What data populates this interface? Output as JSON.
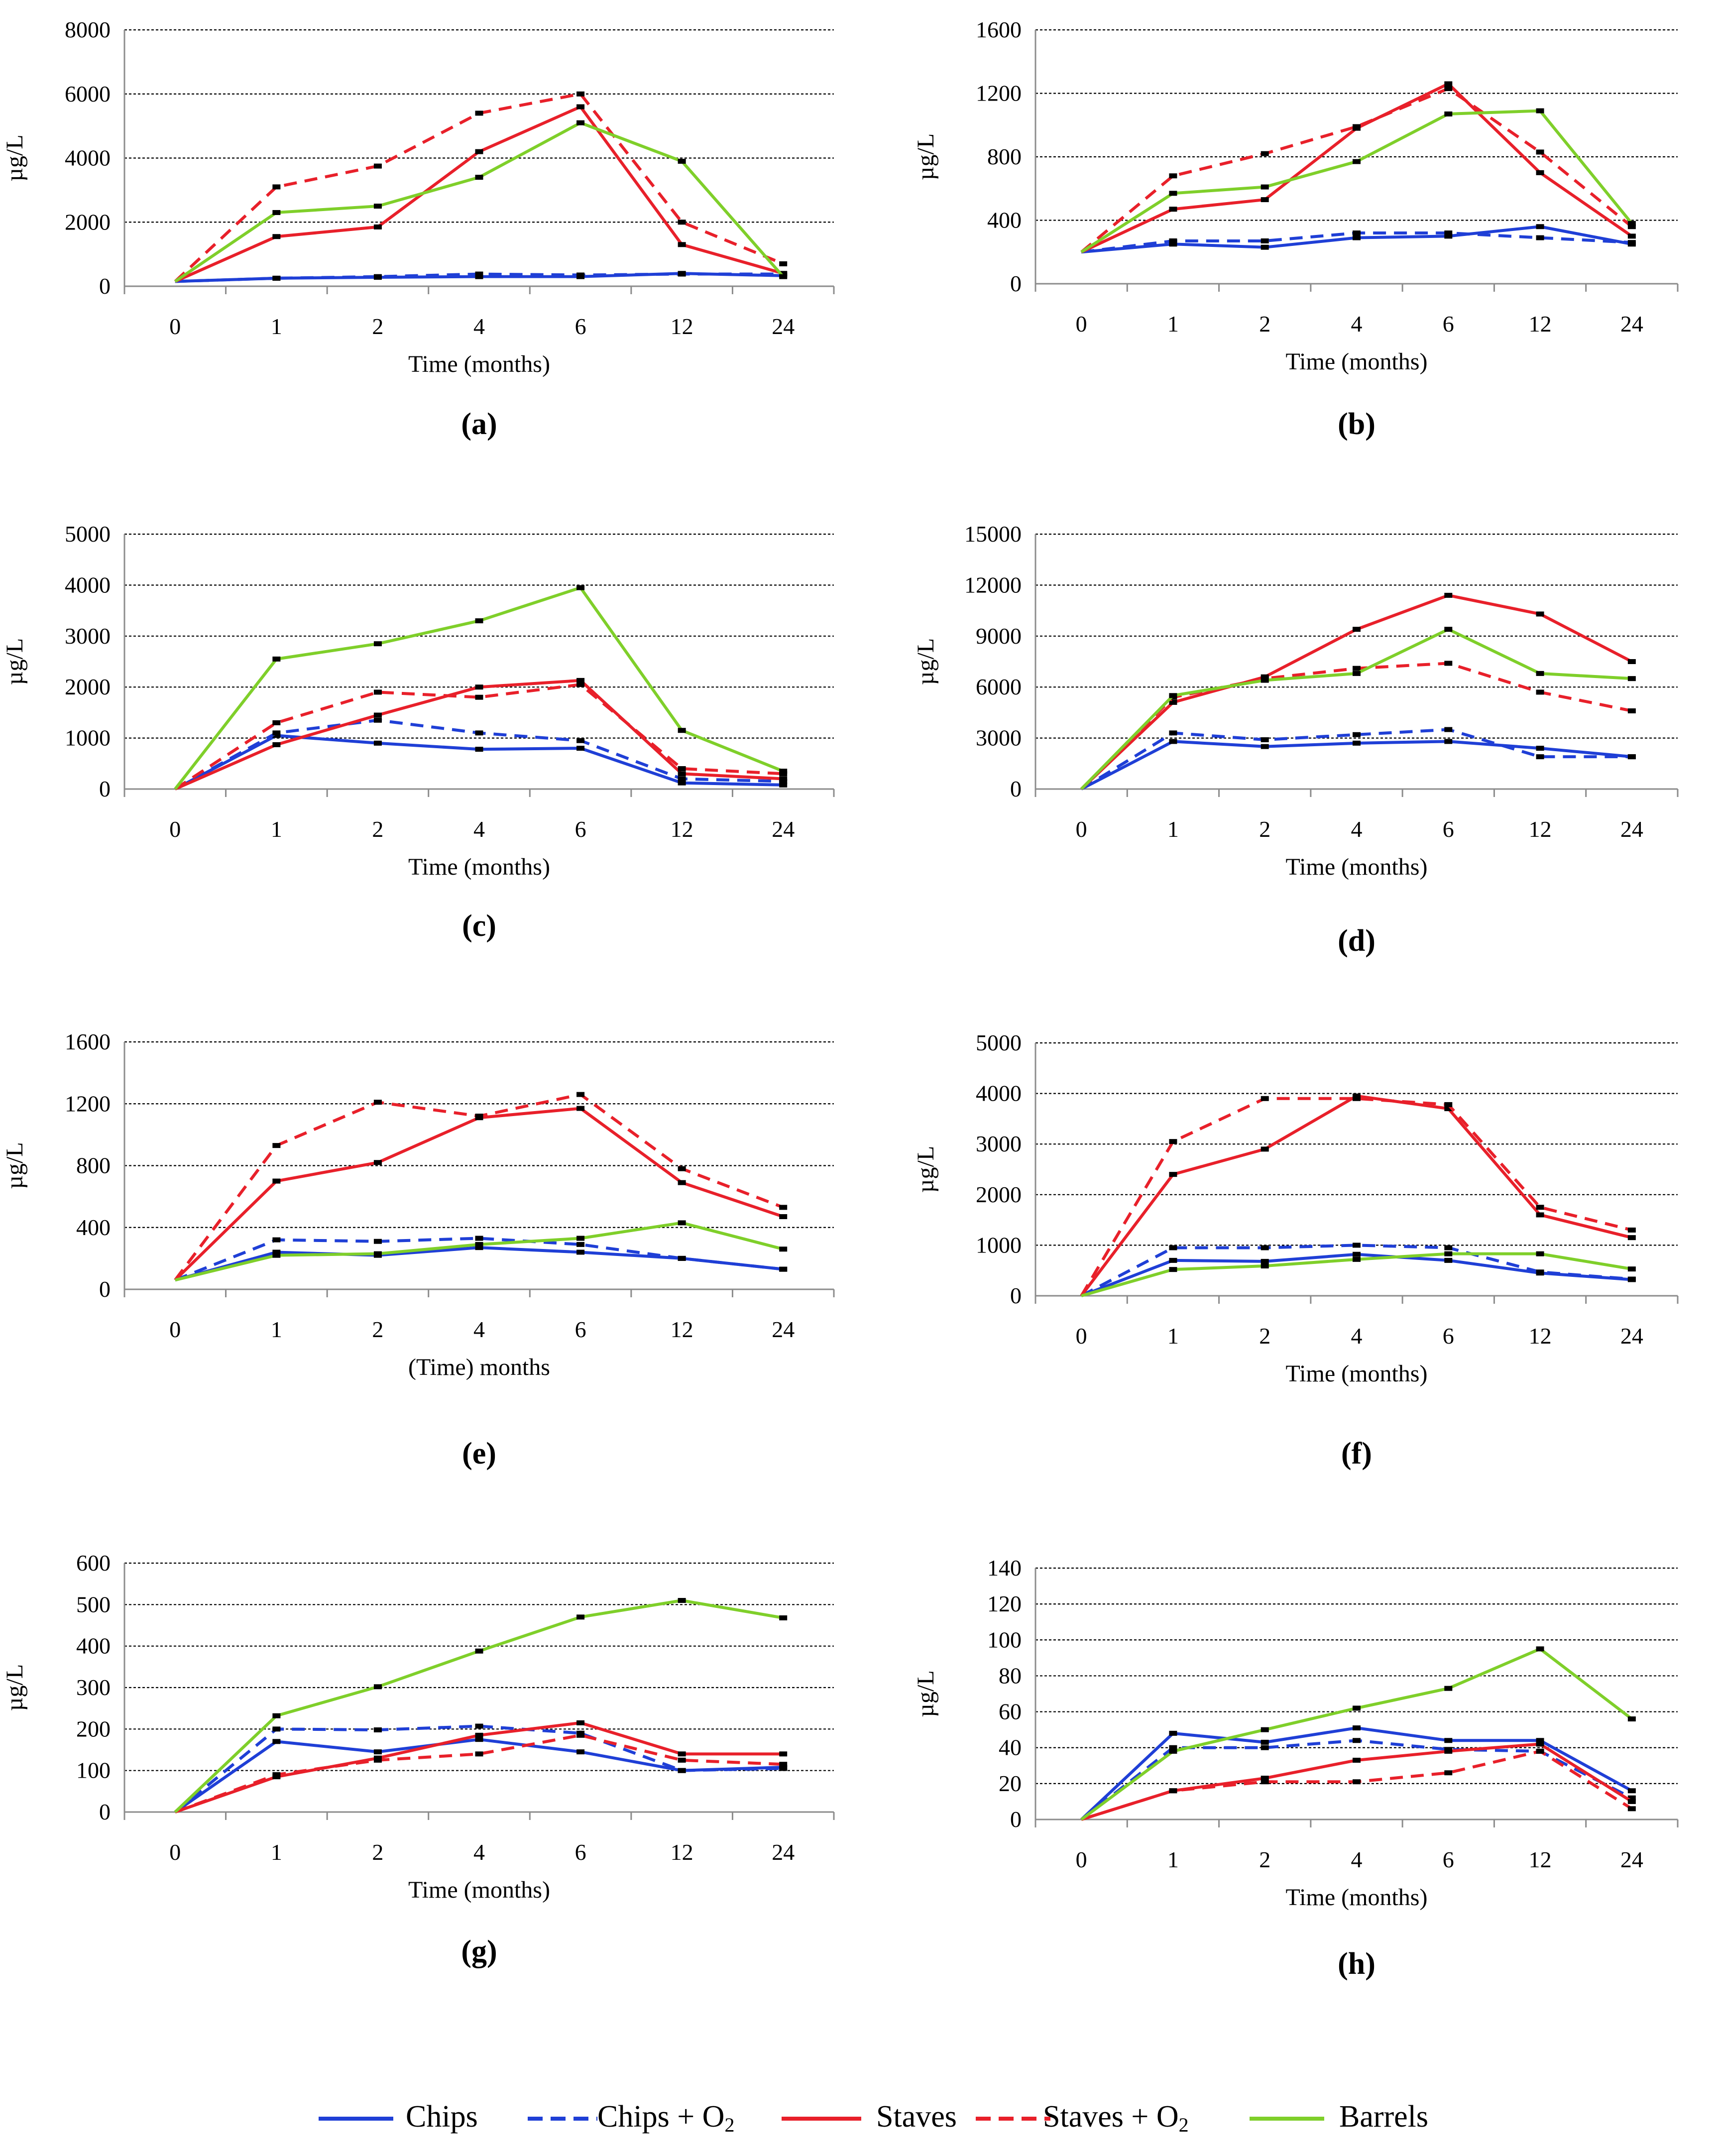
{
  "colors": {
    "chips": "#1f3fd6",
    "staves": "#e8202a",
    "barrels": "#7fcf2a",
    "grid": "#000000",
    "axis": "#8c8c8c"
  },
  "legend": {
    "items": [
      {
        "label": "Chips",
        "color": "#1f3fd6",
        "dash": false
      },
      {
        "label": "Chips + O",
        "sub": "2",
        "color": "#1f3fd6",
        "dash": true
      },
      {
        "label": "Staves",
        "color": "#e8202a",
        "dash": false
      },
      {
        "label": "Staves + O",
        "sub": "2",
        "color": "#e8202a",
        "dash": true
      },
      {
        "label": "Barrels",
        "color": "#7fcf2a",
        "dash": false
      }
    ]
  },
  "chart_data": [
    {
      "type": "line",
      "panel": "(a)",
      "ylabel": "µg/L",
      "xlabel": "Time (months)",
      "categories": [
        "0",
        "1",
        "2",
        "4",
        "6",
        "12",
        "24"
      ],
      "yticks": [
        0,
        2000,
        4000,
        6000,
        8000
      ],
      "ylim": [
        0,
        8000
      ],
      "grid": true,
      "series": [
        {
          "name": "Chips",
          "values": [
            150,
            250,
            280,
            300,
            300,
            400,
            330
          ]
        },
        {
          "name": "Chips + O2",
          "values": [
            150,
            250,
            300,
            380,
            350,
            380,
            380
          ]
        },
        {
          "name": "Staves",
          "values": [
            150,
            1550,
            1850,
            4200,
            5600,
            1300,
            400
          ]
        },
        {
          "name": "Staves + O2",
          "values": [
            150,
            3100,
            3750,
            5400,
            6000,
            2000,
            700
          ]
        },
        {
          "name": "Barrels",
          "values": [
            150,
            2300,
            2500,
            3400,
            5100,
            3900,
            300
          ]
        }
      ]
    },
    {
      "type": "line",
      "panel": "(b)",
      "ylabel": "µg/L",
      "xlabel": "Time (months)",
      "categories": [
        "0",
        "1",
        "2",
        "4",
        "6",
        "12",
        "24"
      ],
      "yticks": [
        0,
        400,
        800,
        1200,
        1600
      ],
      "ylim": [
        0,
        1600
      ],
      "grid": true,
      "series": [
        {
          "name": "Chips",
          "values": [
            200,
            250,
            230,
            290,
            300,
            360,
            250
          ]
        },
        {
          "name": "Chips + O2",
          "values": [
            200,
            270,
            270,
            320,
            320,
            290,
            260
          ]
        },
        {
          "name": "Staves",
          "values": [
            200,
            470,
            530,
            980,
            1260,
            700,
            300
          ]
        },
        {
          "name": "Staves + O2",
          "values": [
            200,
            680,
            820,
            990,
            1230,
            830,
            360
          ]
        },
        {
          "name": "Barrels",
          "values": [
            200,
            570,
            610,
            770,
            1070,
            1090,
            380
          ]
        }
      ]
    },
    {
      "type": "line",
      "panel": "(c)",
      "ylabel": "µg/L",
      "xlabel": "Time (months)",
      "categories": [
        "0",
        "1",
        "2",
        "4",
        "6",
        "12",
        "24"
      ],
      "yticks": [
        0,
        1000,
        2000,
        3000,
        4000,
        5000
      ],
      "ylim": [
        0,
        5000
      ],
      "grid": true,
      "series": [
        {
          "name": "Chips",
          "values": [
            0,
            1050,
            900,
            780,
            800,
            120,
            80
          ]
        },
        {
          "name": "Chips + O2",
          "values": [
            0,
            1100,
            1350,
            1100,
            950,
            200,
            150
          ]
        },
        {
          "name": "Staves",
          "values": [
            0,
            870,
            1450,
            2000,
            2130,
            300,
            200
          ]
        },
        {
          "name": "Staves + O2",
          "values": [
            0,
            1300,
            1900,
            1800,
            2050,
            400,
            300
          ]
        },
        {
          "name": "Barrels",
          "values": [
            0,
            2550,
            2850,
            3300,
            3950,
            1150,
            350
          ]
        }
      ]
    },
    {
      "type": "line",
      "panel": "(d)",
      "ylabel": "µg/L",
      "xlabel": "Time (months)",
      "categories": [
        "0",
        "1",
        "2",
        "4",
        "6",
        "12",
        "24"
      ],
      "yticks": [
        0,
        3000,
        6000,
        9000,
        12000,
        15000
      ],
      "ylim": [
        0,
        15000
      ],
      "grid": true,
      "series": [
        {
          "name": "Chips",
          "values": [
            0,
            2800,
            2500,
            2700,
            2800,
            2400,
            1900
          ]
        },
        {
          "name": "Chips + O2",
          "values": [
            0,
            3300,
            2900,
            3200,
            3500,
            1900,
            1900
          ]
        },
        {
          "name": "Staves",
          "values": [
            0,
            5100,
            6600,
            9400,
            11400,
            10300,
            7500
          ]
        },
        {
          "name": "Staves + O2",
          "values": [
            0,
            5400,
            6500,
            7100,
            7400,
            5700,
            4600
          ]
        },
        {
          "name": "Barrels",
          "values": [
            0,
            5500,
            6400,
            6800,
            9400,
            6800,
            6500
          ]
        }
      ]
    },
    {
      "type": "line",
      "panel": "(e)",
      "ylabel": "µg/L",
      "xlabel": "(Time) months",
      "categories": [
        "0",
        "1",
        "2",
        "4",
        "6",
        "12",
        "24"
      ],
      "yticks": [
        0,
        400,
        800,
        1200,
        1600
      ],
      "ylim": [
        0,
        1600
      ],
      "grid": true,
      "series": [
        {
          "name": "Chips",
          "values": [
            60,
            240,
            220,
            270,
            240,
            200,
            130
          ]
        },
        {
          "name": "Chips + O2",
          "values": [
            60,
            320,
            310,
            330,
            290,
            200,
            130
          ]
        },
        {
          "name": "Staves",
          "values": [
            60,
            700,
            820,
            1110,
            1170,
            690,
            470
          ]
        },
        {
          "name": "Staves + O2",
          "values": [
            60,
            930,
            1210,
            1120,
            1260,
            780,
            530
          ]
        },
        {
          "name": "Barrels",
          "values": [
            60,
            220,
            230,
            290,
            330,
            430,
            260
          ]
        }
      ]
    },
    {
      "type": "line",
      "panel": "(f)",
      "ylabel": "µg/L",
      "xlabel": "Time (months)",
      "categories": [
        "0",
        "1",
        "2",
        "4",
        "6",
        "12",
        "24"
      ],
      "yticks": [
        0,
        1000,
        2000,
        3000,
        4000,
        5000
      ],
      "ylim": [
        0,
        5000
      ],
      "grid": true,
      "series": [
        {
          "name": "Chips",
          "values": [
            0,
            700,
            680,
            820,
            700,
            450,
            320
          ]
        },
        {
          "name": "Chips + O2",
          "values": [
            0,
            950,
            950,
            1000,
            950,
            470,
            330
          ]
        },
        {
          "name": "Staves",
          "values": [
            0,
            2400,
            2900,
            3950,
            3700,
            1600,
            1150
          ]
        },
        {
          "name": "Staves + O2",
          "values": [
            0,
            3050,
            3900,
            3900,
            3780,
            1750,
            1300
          ]
        },
        {
          "name": "Barrels",
          "values": [
            0,
            520,
            590,
            720,
            830,
            830,
            530
          ]
        }
      ]
    },
    {
      "type": "line",
      "panel": "(g)",
      "ylabel": "µg/L",
      "xlabel": "Time (months)",
      "categories": [
        "0",
        "1",
        "2",
        "4",
        "6",
        "12",
        "24"
      ],
      "yticks": [
        0,
        100,
        200,
        300,
        400,
        500,
        600
      ],
      "ylim": [
        0,
        600
      ],
      "grid": true,
      "series": [
        {
          "name": "Chips",
          "values": [
            0,
            170,
            145,
            175,
            145,
            100,
            108
          ]
        },
        {
          "name": "Chips + O2",
          "values": [
            0,
            200,
            198,
            207,
            190,
            100,
            105
          ]
        },
        {
          "name": "Staves",
          "values": [
            0,
            85,
            130,
            185,
            215,
            140,
            140
          ]
        },
        {
          "name": "Staves + O2",
          "values": [
            0,
            90,
            125,
            140,
            185,
            125,
            115
          ]
        },
        {
          "name": "Barrels",
          "values": [
            0,
            232,
            302,
            388,
            470,
            510,
            468
          ]
        }
      ]
    },
    {
      "type": "line",
      "panel": "(h)",
      "ylabel": "µg/L",
      "xlabel": "Time (months)",
      "categories": [
        "0",
        "1",
        "2",
        "4",
        "6",
        "12",
        "24"
      ],
      "yticks": [
        0,
        20,
        40,
        60,
        80,
        100,
        120,
        140
      ],
      "ylim": [
        0,
        140
      ],
      "grid": true,
      "series": [
        {
          "name": "Chips",
          "values": [
            0,
            48,
            43,
            51,
            44,
            44,
            16
          ]
        },
        {
          "name": "Chips + O2",
          "values": [
            0,
            40,
            40,
            44,
            39,
            38,
            12
          ]
        },
        {
          "name": "Staves",
          "values": [
            0,
            16,
            23,
            33,
            38,
            42,
            10
          ]
        },
        {
          "name": "Staves + O2",
          "values": [
            0,
            16,
            21,
            21,
            26,
            38,
            6
          ]
        },
        {
          "name": "Barrels",
          "values": [
            0,
            38,
            50,
            62,
            73,
            95,
            56
          ]
        }
      ]
    }
  ]
}
